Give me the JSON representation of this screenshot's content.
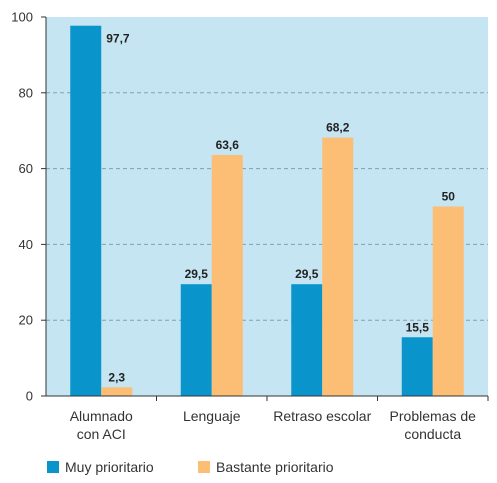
{
  "chart_data": {
    "type": "bar",
    "categories": [
      [
        "Alumnado",
        "con ACI"
      ],
      [
        "Lenguaje"
      ],
      [
        "Retraso escolar"
      ],
      [
        "Problemas de",
        "conducta"
      ]
    ],
    "series": [
      {
        "name": "Muy prioritario",
        "values": [
          97.7,
          29.5,
          29.5,
          15.5
        ],
        "labels": [
          "97,7",
          "29,5",
          "29,5",
          "15,5"
        ],
        "color": "#0a94cc"
      },
      {
        "name": "Bastante prioritario",
        "values": [
          2.3,
          63.6,
          68.2,
          50
        ],
        "labels": [
          "2,3",
          "63,6",
          "68,2",
          "50"
        ],
        "color": "#fcbd74"
      }
    ],
    "yticks": [
      "0",
      "20",
      "40",
      "60",
      "80",
      "100"
    ],
    "ylim": [
      0,
      100
    ],
    "plot_background": "#c5e5f3",
    "grid_color": "#7fa0b8",
    "grid": true,
    "legend_position": "bottom-left"
  }
}
